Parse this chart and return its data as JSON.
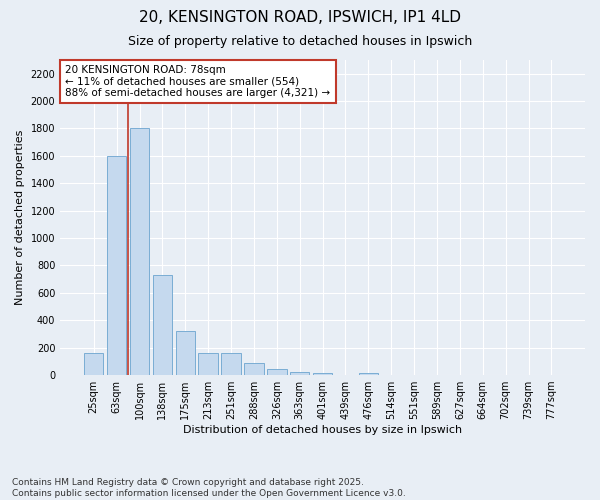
{
  "title": "20, KENSINGTON ROAD, IPSWICH, IP1 4LD",
  "subtitle": "Size of property relative to detached houses in Ipswich",
  "xlabel": "Distribution of detached houses by size in Ipswich",
  "ylabel": "Number of detached properties",
  "categories": [
    "25sqm",
    "63sqm",
    "100sqm",
    "138sqm",
    "175sqm",
    "213sqm",
    "251sqm",
    "288sqm",
    "326sqm",
    "363sqm",
    "401sqm",
    "439sqm",
    "476sqm",
    "514sqm",
    "551sqm",
    "589sqm",
    "627sqm",
    "664sqm",
    "702sqm",
    "739sqm",
    "777sqm"
  ],
  "values": [
    160,
    1600,
    1800,
    730,
    320,
    160,
    160,
    85,
    48,
    25,
    18,
    0,
    18,
    0,
    0,
    0,
    0,
    0,
    0,
    0,
    0
  ],
  "bar_color": "#c5d9ee",
  "bar_edge_color": "#7aadd4",
  "background_color": "#e8eef5",
  "grid_color": "#ffffff",
  "vline_color": "#c0392b",
  "annotation_text": "20 KENSINGTON ROAD: 78sqm\n← 11% of detached houses are smaller (554)\n88% of semi-detached houses are larger (4,321) →",
  "annotation_box_color": "#c0392b",
  "ylim": [
    0,
    2300
  ],
  "yticks": [
    0,
    200,
    400,
    600,
    800,
    1000,
    1200,
    1400,
    1600,
    1800,
    2000,
    2200
  ],
  "footnote": "Contains HM Land Registry data © Crown copyright and database right 2025.\nContains public sector information licensed under the Open Government Licence v3.0.",
  "title_fontsize": 11,
  "subtitle_fontsize": 9,
  "axis_label_fontsize": 8,
  "tick_fontsize": 7,
  "annotation_fontsize": 7.5,
  "footnote_fontsize": 6.5
}
